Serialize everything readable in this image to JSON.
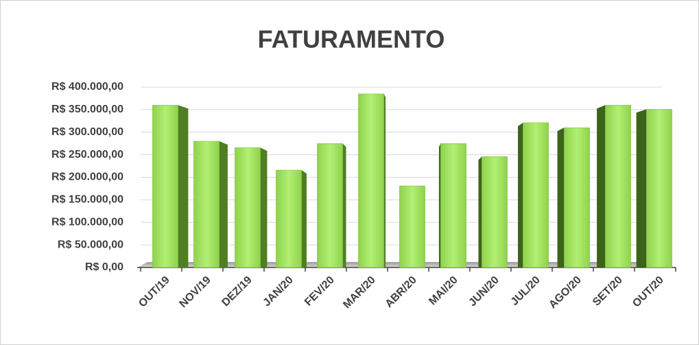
{
  "chart_data": {
    "type": "bar",
    "title": "FATURAMENTO",
    "categories": [
      "OUT/19",
      "NOV/19",
      "DEZ/19",
      "JAN/20",
      "FEV/20",
      "MAR/20",
      "ABR/20",
      "MAI/20",
      "JUN/20",
      "JUL/20",
      "AGO/20",
      "SET/20",
      "OUT/20"
    ],
    "values": [
      360000,
      280000,
      266000,
      216000,
      275000,
      385000,
      181000,
      275000,
      246000,
      321000,
      310000,
      360000,
      351000
    ],
    "color": "#92d050",
    "ylim": [
      0,
      400000
    ],
    "yticks": [
      {
        "value": 0,
        "label": "R$ 0,00"
      },
      {
        "value": 50000,
        "label": "R$ 50.000,00"
      },
      {
        "value": 100000,
        "label": "R$ 100.000,00"
      },
      {
        "value": 150000,
        "label": "R$ 150.000,00"
      },
      {
        "value": 200000,
        "label": "R$ 200.000,00"
      },
      {
        "value": 250000,
        "label": "R$ 250.000,00"
      },
      {
        "value": 300000,
        "label": "R$ 300.000,00"
      },
      {
        "value": 350000,
        "label": "R$ 350.000,00"
      },
      {
        "value": 400000,
        "label": "R$ 400.000,00"
      }
    ],
    "grid": true
  }
}
